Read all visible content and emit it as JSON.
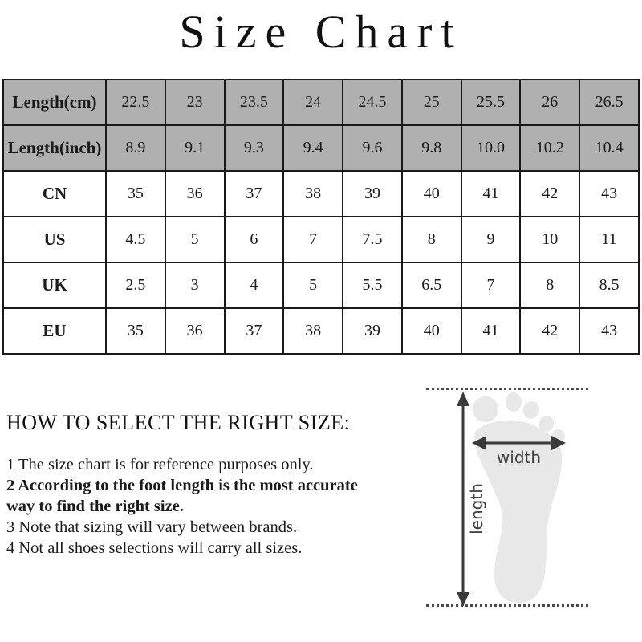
{
  "title": "Size Chart",
  "chart_data": {
    "type": "table",
    "title": "Size Chart",
    "rows": [
      {
        "label": "Length(cm)",
        "shaded": true,
        "values": [
          "22.5",
          "23",
          "23.5",
          "24",
          "24.5",
          "25",
          "25.5",
          "26",
          "26.5"
        ]
      },
      {
        "label": "Length(inch)",
        "shaded": true,
        "values": [
          "8.9",
          "9.1",
          "9.3",
          "9.4",
          "9.6",
          "9.8",
          "10.0",
          "10.2",
          "10.4"
        ]
      },
      {
        "label": "CN",
        "shaded": false,
        "values": [
          "35",
          "36",
          "37",
          "38",
          "39",
          "40",
          "41",
          "42",
          "43"
        ]
      },
      {
        "label": "US",
        "shaded": false,
        "values": [
          "4.5",
          "5",
          "6",
          "7",
          "7.5",
          "8",
          "9",
          "10",
          "11"
        ]
      },
      {
        "label": "UK",
        "shaded": false,
        "values": [
          "2.5",
          "3",
          "4",
          "5",
          "5.5",
          "6.5",
          "7",
          "8",
          "8.5"
        ]
      },
      {
        "label": "EU",
        "shaded": false,
        "values": [
          "35",
          "36",
          "37",
          "38",
          "39",
          "40",
          "41",
          "42",
          "43"
        ]
      }
    ]
  },
  "guide": {
    "heading": "HOW TO SELECT THE RIGHT SIZE:",
    "notes": [
      {
        "text": "1 The size chart is for reference purposes only.",
        "bold": false
      },
      {
        "text": "2 According to the foot length is the most accurate way to find the right size.",
        "bold": true
      },
      {
        "text": "3 Note that sizing will vary between brands.",
        "bold": false
      },
      {
        "text": "4 Not all shoes selections will carry all sizes.",
        "bold": false
      }
    ]
  },
  "diagram": {
    "width_label": "width",
    "length_label": "length"
  },
  "colors": {
    "shaded_row": "#b0b0b0",
    "table_border": "#1a1a1a",
    "footprint": "#e8e8e8",
    "arrow": "#3a3a3a",
    "text": "#1a1a1a"
  }
}
